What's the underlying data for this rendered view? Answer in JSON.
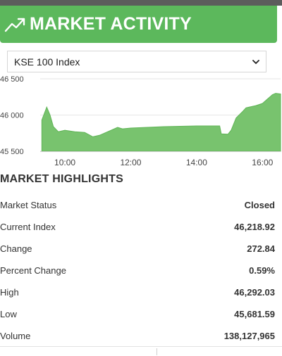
{
  "header": {
    "title": "MARKET ACTIVITY",
    "icon": "trend-up-icon",
    "color": "#5cb85c"
  },
  "index_select": {
    "selected": "KSE 100 Index"
  },
  "chart_data": {
    "type": "area",
    "color": "#78c36e",
    "ylim": [
      45500,
      46500
    ],
    "y_ticks": [
      {
        "value": 46500,
        "label": "46 500"
      },
      {
        "value": 46000,
        "label": "46 000"
      },
      {
        "value": 45500,
        "label": "45 500"
      }
    ],
    "x_ticks": [
      {
        "value": 10,
        "label": "10:00"
      },
      {
        "value": 12,
        "label": "12:00"
      },
      {
        "value": 14,
        "label": "14:00"
      },
      {
        "value": 16,
        "label": "16:00"
      }
    ],
    "xlim": [
      9.25,
      16.55
    ],
    "x": [
      9.3,
      9.45,
      9.55,
      9.65,
      9.8,
      10.0,
      10.3,
      10.6,
      10.85,
      11.05,
      11.35,
      11.6,
      11.75,
      12.0,
      12.5,
      13.0,
      13.5,
      14.0,
      14.4,
      14.7,
      14.75,
      14.95,
      15.05,
      15.2,
      15.4,
      15.5,
      15.8,
      16.0,
      16.3,
      16.4,
      16.55
    ],
    "y": [
      45930,
      46110,
      46000,
      45840,
      45770,
      45790,
      45770,
      45760,
      45700,
      45720,
      45780,
      45830,
      45810,
      45820,
      45830,
      45840,
      45845,
      45850,
      45850,
      45850,
      45740,
      45735,
      45790,
      45960,
      46050,
      46100,
      46130,
      46160,
      46280,
      46300,
      46290
    ],
    "grid": true
  },
  "highlights": {
    "title": "MARKET HIGHLIGHTS",
    "rows": [
      {
        "label": "Market Status",
        "value": "Closed"
      },
      {
        "label": "Current Index",
        "value": "46,218.92"
      },
      {
        "label": "Change",
        "value": "272.84"
      },
      {
        "label": "Percent Change",
        "value": "0.59%"
      },
      {
        "label": "High",
        "value": "46,292.03"
      },
      {
        "label": "Low",
        "value": "45,681.59"
      },
      {
        "label": "Volume",
        "value": "138,127,965"
      }
    ]
  }
}
